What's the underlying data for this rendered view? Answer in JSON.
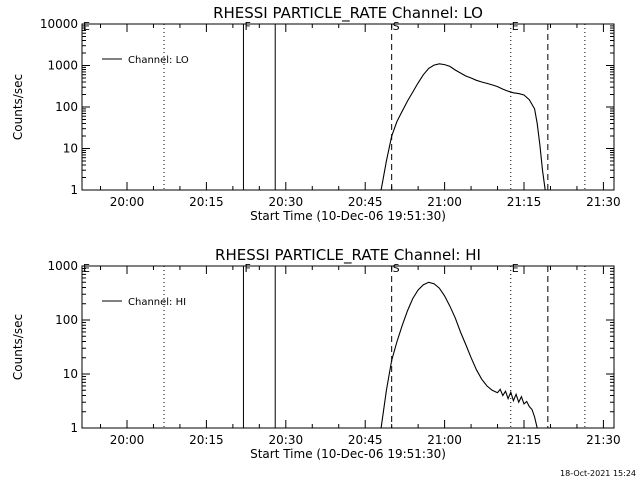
{
  "footer_timestamp": "18-Oct-2021 15:24",
  "colors": {
    "background": "#ffffff",
    "ink": "#000000"
  },
  "chart_data": [
    {
      "type": "line",
      "title": "RHESSI PARTICLE_RATE Channel: LO",
      "xlabel": "Start Time (10-Dec-06 19:51:30)",
      "ylabel": "Counts/sec",
      "y_scale": "log",
      "ylim": [
        1,
        10000
      ],
      "y_ticks": [
        1,
        10,
        100,
        1000,
        10000
      ],
      "y_tick_labels": [
        "1",
        "10",
        "100",
        "1000",
        "10000"
      ],
      "xlim": [
        "19:51:30",
        "21:32:00"
      ],
      "x_ticks": [
        "20:00",
        "20:15",
        "20:30",
        "20:45",
        "21:00",
        "21:15",
        "21:30"
      ],
      "legend": {
        "label": "Channel: LO",
        "position": "top-left"
      },
      "markers": [
        {
          "label": "E",
          "time": "19:51:30",
          "style": "dotted"
        },
        {
          "label": "",
          "time": "20:07:00",
          "style": "dotted"
        },
        {
          "label": "F",
          "time": "20:22:00",
          "style": "solid"
        },
        {
          "label": "",
          "time": "20:28:00",
          "style": "solid"
        },
        {
          "label": "S",
          "time": "20:50:00",
          "style": "dashed"
        },
        {
          "label": "E",
          "time": "21:12:30",
          "style": "dotted"
        },
        {
          "label": "",
          "time": "21:19:30",
          "style": "dashed"
        },
        {
          "label": "",
          "time": "21:26:30",
          "style": "dotted"
        }
      ],
      "series": [
        {
          "name": "Channel: LO",
          "x": [
            "20:48:00",
            "20:49:00",
            "20:50:00",
            "20:51:00",
            "20:52:00",
            "20:53:00",
            "20:54:00",
            "20:55:00",
            "20:56:00",
            "20:57:00",
            "20:58:00",
            "20:59:00",
            "21:00:00",
            "21:01:00",
            "21:02:00",
            "21:03:00",
            "21:04:00",
            "21:05:00",
            "21:06:00",
            "21:07:00",
            "21:08:00",
            "21:09:00",
            "21:10:00",
            "21:11:00",
            "21:12:00",
            "21:13:00",
            "21:14:00",
            "21:15:00",
            "21:16:00",
            "21:17:00",
            "21:17:30",
            "21:18:00",
            "21:18:30",
            "21:19:00"
          ],
          "y": [
            1,
            5,
            20,
            45,
            80,
            140,
            230,
            380,
            600,
            850,
            1020,
            1100,
            1050,
            950,
            780,
            660,
            560,
            500,
            440,
            400,
            370,
            340,
            310,
            270,
            240,
            220,
            210,
            195,
            150,
            90,
            40,
            12,
            3,
            1
          ]
        }
      ]
    },
    {
      "type": "line",
      "title": "RHESSI PARTICLE_RATE Channel: HI",
      "xlabel": "Start Time (10-Dec-06 19:51:30)",
      "ylabel": "Counts/sec",
      "y_scale": "log",
      "ylim": [
        1,
        1000
      ],
      "y_ticks": [
        1,
        10,
        100,
        1000
      ],
      "y_tick_labels": [
        "1",
        "10",
        "100",
        "1000"
      ],
      "xlim": [
        "19:51:30",
        "21:32:00"
      ],
      "x_ticks": [
        "20:00",
        "20:15",
        "20:30",
        "20:45",
        "21:00",
        "21:15",
        "21:30"
      ],
      "legend": {
        "label": "Channel: HI",
        "position": "top-left"
      },
      "markers": [
        {
          "label": "E",
          "time": "19:51:30",
          "style": "dotted"
        },
        {
          "label": "",
          "time": "20:07:00",
          "style": "dotted"
        },
        {
          "label": "F",
          "time": "20:22:00",
          "style": "solid"
        },
        {
          "label": "",
          "time": "20:28:00",
          "style": "solid"
        },
        {
          "label": "S",
          "time": "20:50:00",
          "style": "dashed"
        },
        {
          "label": "E",
          "time": "21:12:30",
          "style": "dotted"
        },
        {
          "label": "",
          "time": "21:19:30",
          "style": "dashed"
        },
        {
          "label": "",
          "time": "21:26:30",
          "style": "dotted"
        }
      ],
      "series": [
        {
          "name": "Channel: HI",
          "x": [
            "20:48:00",
            "20:49:00",
            "20:50:00",
            "20:51:00",
            "20:52:00",
            "20:53:00",
            "20:54:00",
            "20:55:00",
            "20:56:00",
            "20:57:00",
            "20:58:00",
            "20:59:00",
            "21:00:00",
            "21:01:00",
            "21:02:00",
            "21:03:00",
            "21:04:00",
            "21:05:00",
            "21:06:00",
            "21:07:00",
            "21:08:00",
            "21:09:00",
            "21:10:00",
            "21:10:30",
            "21:11:00",
            "21:11:30",
            "21:12:00",
            "21:12:30",
            "21:13:00",
            "21:13:30",
            "21:14:00",
            "21:14:30",
            "21:15:00",
            "21:15:30",
            "21:16:00",
            "21:16:30",
            "21:17:00",
            "21:17:30"
          ],
          "y": [
            1,
            5,
            18,
            40,
            80,
            150,
            250,
            360,
            450,
            500,
            470,
            390,
            280,
            180,
            110,
            60,
            35,
            20,
            12,
            8,
            6,
            5,
            4.5,
            5.2,
            4,
            4.8,
            3.5,
            4.6,
            3.2,
            4.2,
            3,
            3.8,
            2.8,
            3.1,
            2.5,
            2.2,
            1.6,
            1
          ]
        }
      ]
    }
  ]
}
